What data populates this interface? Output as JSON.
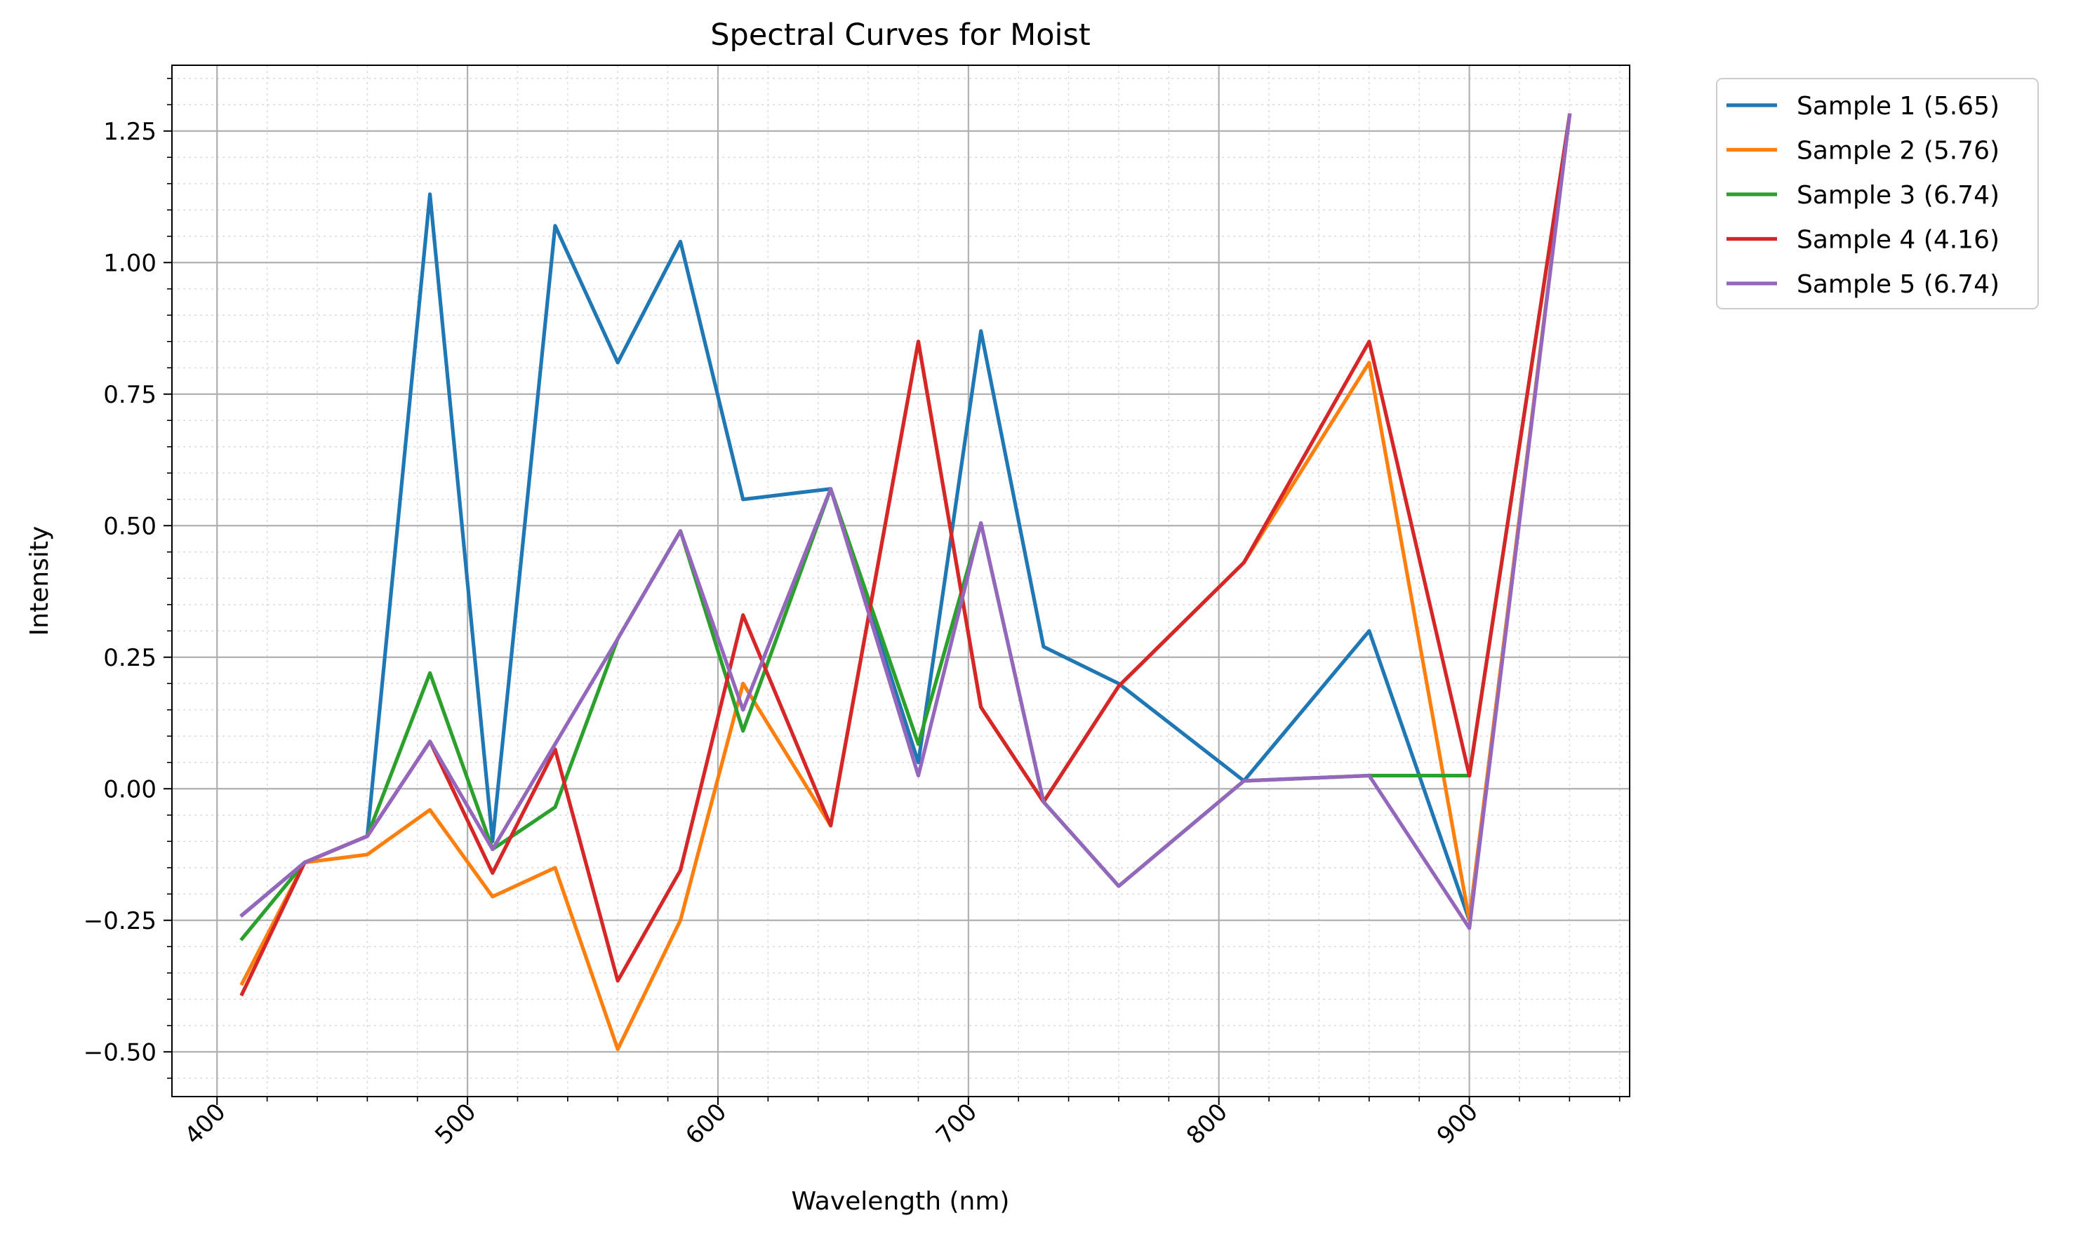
{
  "chart_data": {
    "type": "line",
    "title": "Spectral Curves for Moist",
    "xlabel": "Wavelength (nm)",
    "ylabel": "Intensity",
    "xlim": [
      382,
      964
    ],
    "ylim": [
      -0.585,
      1.375
    ],
    "x_ticks": [
      400,
      500,
      600,
      700,
      800,
      900
    ],
    "x_minor_step": 20,
    "y_ticks": [
      -0.5,
      -0.25,
      0.0,
      0.25,
      0.5,
      0.75,
      1.0,
      1.25
    ],
    "y_tick_labels": [
      "−0.50",
      "−0.25",
      "0.00",
      "0.25",
      "0.50",
      "0.75",
      "1.00",
      "1.25"
    ],
    "y_minor_step": 0.05,
    "x_tick_rotation": 45,
    "grid": {
      "major": true,
      "minor": true
    },
    "legend_position": "outside-upper-right",
    "x": [
      410,
      435,
      460,
      485,
      510,
      535,
      560,
      585,
      610,
      645,
      680,
      705,
      730,
      760,
      810,
      860,
      900,
      940
    ],
    "series": [
      {
        "name": "Sample 1 (5.65)",
        "color": "#1f77b4",
        "values": [
          -0.24,
          -0.14,
          -0.09,
          1.13,
          -0.1,
          1.07,
          0.81,
          1.04,
          0.55,
          0.57,
          0.05,
          0.87,
          0.27,
          0.2,
          0.015,
          0.3,
          -0.25,
          1.28
        ]
      },
      {
        "name": "Sample 2 (5.76)",
        "color": "#ff7f0e",
        "values": [
          -0.37,
          -0.14,
          -0.125,
          -0.04,
          -0.205,
          -0.15,
          -0.495,
          -0.25,
          0.2,
          -0.07,
          0.85,
          0.155,
          -0.025,
          0.195,
          0.43,
          0.81,
          -0.25,
          1.28
        ]
      },
      {
        "name": "Sample 3 (6.74)",
        "color": "#2ca02c",
        "values": [
          -0.285,
          -0.14,
          -0.09,
          0.22,
          -0.115,
          -0.035,
          0.285,
          0.49,
          0.11,
          0.57,
          0.085,
          0.505,
          -0.025,
          -0.185,
          0.015,
          0.025,
          0.025,
          1.28
        ]
      },
      {
        "name": "Sample 4 (4.16)",
        "color": "#d62728",
        "values": [
          -0.39,
          -0.14,
          -0.09,
          0.09,
          -0.16,
          0.075,
          -0.365,
          -0.155,
          0.33,
          -0.07,
          0.85,
          0.155,
          -0.025,
          0.195,
          0.43,
          0.85,
          0.025,
          1.28
        ]
      },
      {
        "name": "Sample 5 (6.74)",
        "color": "#9467bd",
        "values": [
          -0.24,
          -0.14,
          -0.09,
          0.09,
          -0.115,
          0.085,
          0.285,
          0.49,
          0.15,
          0.57,
          0.025,
          0.505,
          -0.025,
          -0.185,
          0.015,
          0.025,
          -0.265,
          1.28
        ]
      }
    ]
  }
}
